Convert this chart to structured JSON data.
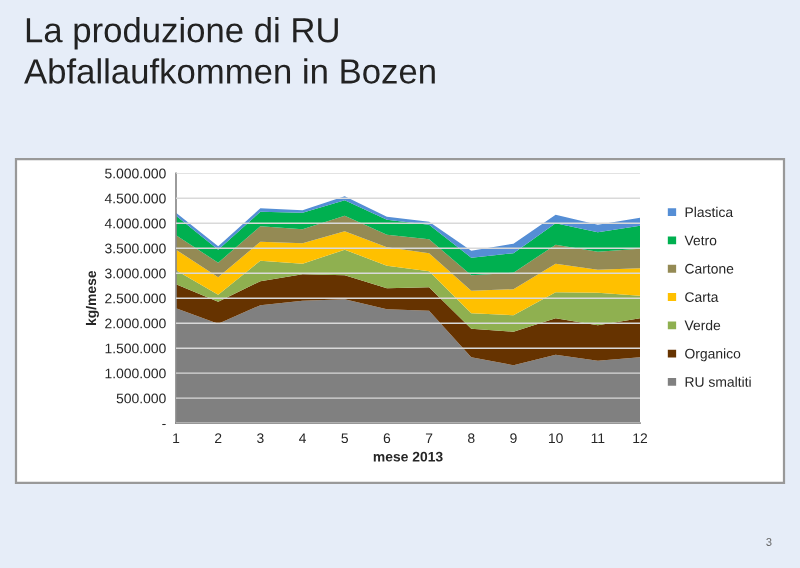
{
  "chart_data": {
    "type": "area",
    "stacked": true,
    "title": "La produzione di RU\nAbfallaufkommen in Bozen",
    "xlabel": "mese 2013",
    "ylabel": "kg/mese",
    "x": [
      1,
      2,
      3,
      4,
      5,
      6,
      7,
      8,
      9,
      10,
      11,
      12
    ],
    "series": [
      {
        "name": "RU smaltiti",
        "color": "#808080",
        "values": [
          2300000,
          1990000,
          2360000,
          2450000,
          2480000,
          2280000,
          2250000,
          1320000,
          1160000,
          1370000,
          1250000,
          1320000
        ]
      },
      {
        "name": "Organico",
        "color": "#663300",
        "values": [
          480000,
          440000,
          480000,
          530000,
          480000,
          420000,
          470000,
          570000,
          670000,
          730000,
          710000,
          780000
        ]
      },
      {
        "name": "Verde",
        "color": "#8fb050",
        "values": [
          280000,
          140000,
          410000,
          210000,
          510000,
          450000,
          320000,
          310000,
          330000,
          520000,
          650000,
          450000
        ]
      },
      {
        "name": "Carta",
        "color": "#ffc000",
        "values": [
          410000,
          350000,
          380000,
          410000,
          370000,
          370000,
          360000,
          450000,
          520000,
          570000,
          460000,
          550000
        ]
      },
      {
        "name": "Cartone",
        "color": "#948a54",
        "values": [
          290000,
          290000,
          310000,
          280000,
          310000,
          250000,
          280000,
          310000,
          330000,
          380000,
          360000,
          390000
        ]
      },
      {
        "name": "Vetro",
        "color": "#00b050",
        "values": [
          390000,
          260000,
          290000,
          330000,
          310000,
          300000,
          290000,
          350000,
          390000,
          430000,
          390000,
          460000
        ]
      },
      {
        "name": "Plastica",
        "color": "#558ed5",
        "values": [
          60000,
          70000,
          70000,
          50000,
          80000,
          60000,
          60000,
          140000,
          190000,
          170000,
          150000,
          160000
        ]
      }
    ],
    "xlim": [
      1,
      12
    ],
    "xticks": [
      1,
      2,
      3,
      4,
      5,
      6,
      7,
      8,
      9,
      10,
      11,
      12
    ],
    "ylim": [
      0,
      5000000
    ],
    "yticks": [
      {
        "value": 0,
        "label": "-"
      },
      {
        "value": 500000,
        "label": "500.000"
      },
      {
        "value": 1000000,
        "label": "1.000.000"
      },
      {
        "value": 1500000,
        "label": "1.500.000"
      },
      {
        "value": 2000000,
        "label": "2.000.000"
      },
      {
        "value": 2500000,
        "label": "2.500.000"
      },
      {
        "value": 3000000,
        "label": "3.000.000"
      },
      {
        "value": 3500000,
        "label": "3.500.000"
      },
      {
        "value": 4000000,
        "label": "4.000.000"
      },
      {
        "value": 4500000,
        "label": "4.500.000"
      },
      {
        "value": 5000000,
        "label": "5.000.000"
      }
    ],
    "grid": "y",
    "legend": "right",
    "annotations": [
      "3"
    ]
  }
}
